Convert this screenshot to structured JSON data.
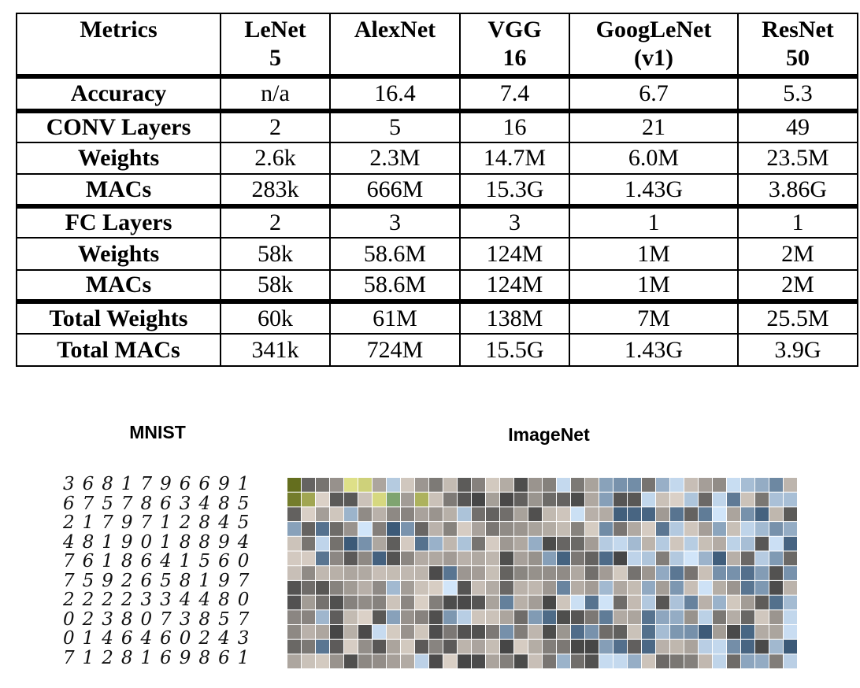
{
  "table": {
    "header": [
      "Metrics",
      "LeNet\n5",
      "AlexNet",
      "VGG\n16",
      "GoogLeNet\n(v1)",
      "ResNet\n50"
    ],
    "rows": [
      [
        "Accuracy",
        "n/a",
        "16.4",
        "7.4",
        "6.7",
        "5.3"
      ],
      [
        "CONV Layers",
        "2",
        "5",
        "16",
        "21",
        "49"
      ],
      [
        "Weights",
        "2.6k",
        "2.3M",
        "14.7M",
        "6.0M",
        "23.5M"
      ],
      [
        "MACs",
        "283k",
        "666M",
        "15.3G",
        "1.43G",
        "3.86G"
      ],
      [
        "FC Layers",
        "2",
        "3",
        "3",
        "1",
        "1"
      ],
      [
        "Weights",
        "58k",
        "58.6M",
        "124M",
        "1M",
        "2M"
      ],
      [
        "MACs",
        "58k",
        "58.6M",
        "124M",
        "1M",
        "2M"
      ],
      [
        "Total Weights",
        "60k",
        "61M",
        "138M",
        "7M",
        "25.5M"
      ],
      [
        "Total MACs",
        "341k",
        "724M",
        "15.5G",
        "1.43G",
        "3.9G"
      ]
    ]
  },
  "mnist": {
    "title": "MNIST",
    "digits": [
      "3681796691",
      "6757863485",
      "2179712845",
      "4819018894",
      "7618641560",
      "7592658197",
      "2222334480",
      "0238073857",
      "0146460243",
      "7128169861"
    ]
  },
  "imagenet": {
    "title": "ImageNet"
  }
}
